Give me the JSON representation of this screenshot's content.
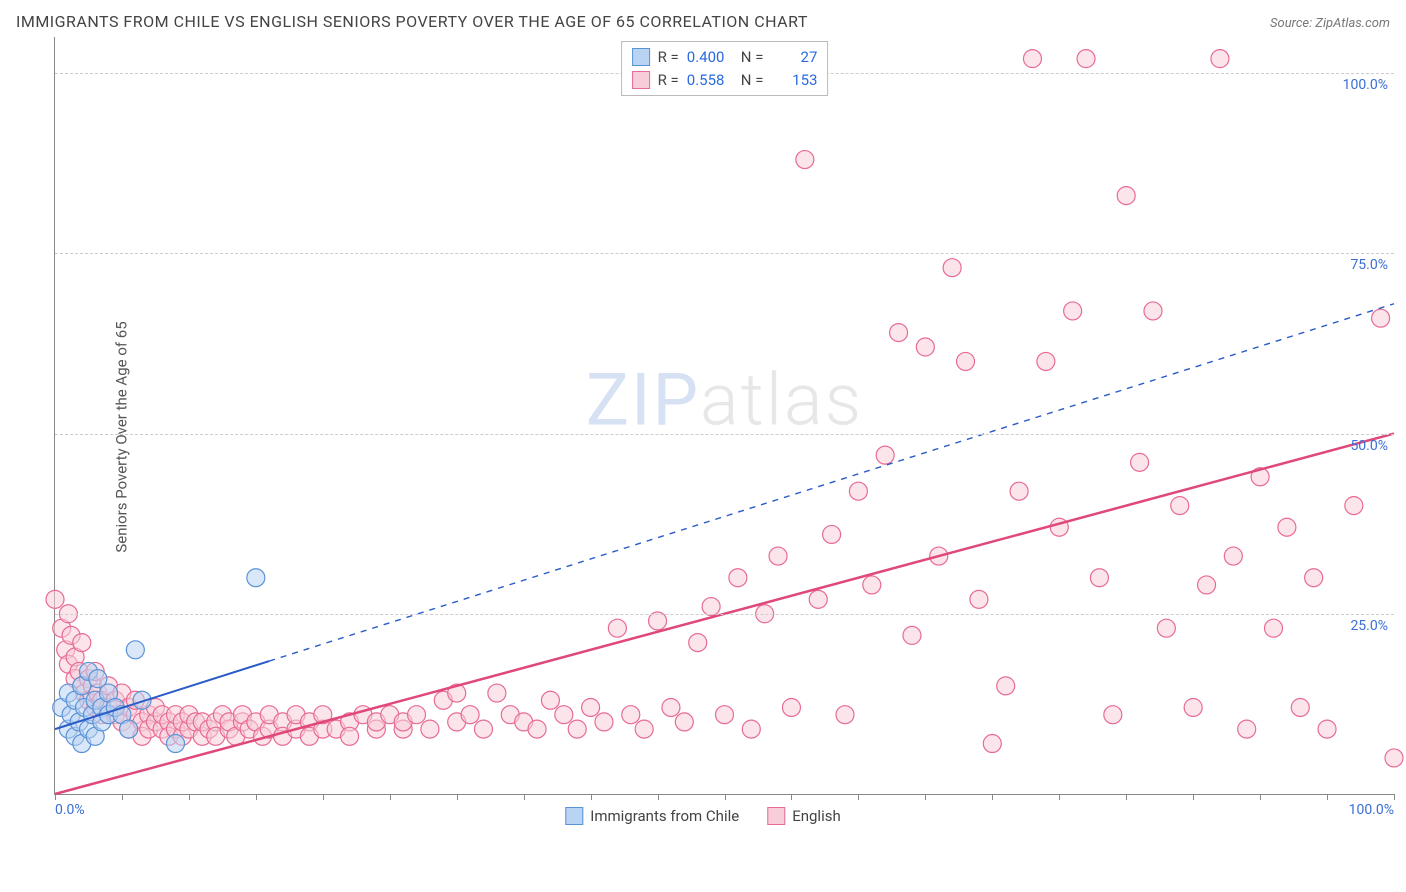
{
  "title": "IMMIGRANTS FROM CHILE VS ENGLISH SENIORS POVERTY OVER THE AGE OF 65 CORRELATION CHART",
  "source": "Source: ZipAtlas.com",
  "y_axis_label": "Seniors Poverty Over the Age of 65",
  "watermark_a": "ZIP",
  "watermark_b": "atlas",
  "chart": {
    "type": "scatter-correlation",
    "xlim": [
      0,
      100
    ],
    "ylim": [
      0,
      105
    ],
    "x_ticks_pct": [
      0,
      5,
      10,
      15,
      20,
      25,
      30,
      35,
      40,
      45,
      50,
      55,
      60,
      65,
      70,
      75,
      80,
      85,
      90,
      95,
      100
    ],
    "x_tick_labels": {
      "0": "0.0%",
      "100": "100.0%"
    },
    "y_gridlines": [
      25,
      50,
      75,
      100
    ],
    "y_tick_labels": {
      "25": "25.0%",
      "50": "50.0%",
      "75": "75.0%",
      "100": "100.0%"
    },
    "background_color": "#ffffff",
    "grid_color": "#cccccc",
    "axis_color": "#888888",
    "tick_label_color": "#3b6fd6",
    "marker_radius": 9,
    "marker_stroke_width": 1.2,
    "series": [
      {
        "key": "chile",
        "label": "Immigrants from Chile",
        "fill": "#b9d4f3",
        "stroke": "#5a93d8",
        "fill_opacity": 0.55,
        "R": "0.400",
        "N": "27",
        "trend": {
          "x1": 0,
          "y1": 9,
          "x2": 100,
          "y2": 68,
          "solid_until_x": 16,
          "color": "#2a5bc7",
          "width": 2,
          "dash": "6 6"
        },
        "points": [
          [
            0.5,
            12
          ],
          [
            1,
            9
          ],
          [
            1,
            14
          ],
          [
            1.2,
            11
          ],
          [
            1.5,
            8
          ],
          [
            1.5,
            13
          ],
          [
            1.8,
            10
          ],
          [
            2,
            7
          ],
          [
            2,
            15
          ],
          [
            2.2,
            12
          ],
          [
            2.5,
            9
          ],
          [
            2.5,
            17
          ],
          [
            2.8,
            11
          ],
          [
            3,
            13
          ],
          [
            3,
            8
          ],
          [
            3.2,
            16
          ],
          [
            3.5,
            12
          ],
          [
            3.5,
            10
          ],
          [
            4,
            11
          ],
          [
            4,
            14
          ],
          [
            4.5,
            12
          ],
          [
            5,
            11
          ],
          [
            5.5,
            9
          ],
          [
            6,
            20
          ],
          [
            6.5,
            13
          ],
          [
            9,
            7
          ],
          [
            15,
            30
          ]
        ]
      },
      {
        "key": "english",
        "label": "English",
        "fill": "#f7cdd9",
        "stroke": "#e76b95",
        "fill_opacity": 0.55,
        "R": "0.558",
        "N": "153",
        "trend": {
          "x1": 0,
          "y1": 0,
          "x2": 100,
          "y2": 50,
          "solid_until_x": 100,
          "color": "#e0487a",
          "width": 2.5,
          "dash": ""
        },
        "points": [
          [
            0,
            27
          ],
          [
            0.5,
            23
          ],
          [
            0.8,
            20
          ],
          [
            1,
            25
          ],
          [
            1,
            18
          ],
          [
            1.2,
            22
          ],
          [
            1.5,
            19
          ],
          [
            1.5,
            16
          ],
          [
            1.8,
            17
          ],
          [
            2,
            15
          ],
          [
            2,
            21
          ],
          [
            2.2,
            14
          ],
          [
            2.5,
            16
          ],
          [
            2.5,
            13
          ],
          [
            2.8,
            15
          ],
          [
            3,
            12
          ],
          [
            3,
            17
          ],
          [
            3.2,
            14
          ],
          [
            3.5,
            13
          ],
          [
            3.5,
            11
          ],
          [
            4,
            12
          ],
          [
            4,
            15
          ],
          [
            4.5,
            11
          ],
          [
            4.5,
            13
          ],
          [
            5,
            10
          ],
          [
            5,
            14
          ],
          [
            5.5,
            12
          ],
          [
            5.5,
            9
          ],
          [
            6,
            11
          ],
          [
            6,
            13
          ],
          [
            6.5,
            10
          ],
          [
            6.5,
            8
          ],
          [
            7,
            11
          ],
          [
            7,
            9
          ],
          [
            7.5,
            10
          ],
          [
            7.5,
            12
          ],
          [
            8,
            9
          ],
          [
            8,
            11
          ],
          [
            8.5,
            10
          ],
          [
            8.5,
            8
          ],
          [
            9,
            9
          ],
          [
            9,
            11
          ],
          [
            9.5,
            8
          ],
          [
            9.5,
            10
          ],
          [
            10,
            9
          ],
          [
            10,
            11
          ],
          [
            10.5,
            10
          ],
          [
            11,
            8
          ],
          [
            11,
            10
          ],
          [
            11.5,
            9
          ],
          [
            12,
            10
          ],
          [
            12,
            8
          ],
          [
            12.5,
            11
          ],
          [
            13,
            9
          ],
          [
            13,
            10
          ],
          [
            13.5,
            8
          ],
          [
            14,
            10
          ],
          [
            14,
            11
          ],
          [
            14.5,
            9
          ],
          [
            15,
            10
          ],
          [
            15.5,
            8
          ],
          [
            16,
            9
          ],
          [
            16,
            11
          ],
          [
            17,
            10
          ],
          [
            17,
            8
          ],
          [
            18,
            9
          ],
          [
            18,
            11
          ],
          [
            19,
            10
          ],
          [
            19,
            8
          ],
          [
            20,
            9
          ],
          [
            20,
            11
          ],
          [
            21,
            9
          ],
          [
            22,
            10
          ],
          [
            22,
            8
          ],
          [
            23,
            11
          ],
          [
            24,
            9
          ],
          [
            24,
            10
          ],
          [
            25,
            11
          ],
          [
            26,
            9
          ],
          [
            26,
            10
          ],
          [
            27,
            11
          ],
          [
            28,
            9
          ],
          [
            29,
            13
          ],
          [
            30,
            10
          ],
          [
            30,
            14
          ],
          [
            31,
            11
          ],
          [
            32,
            9
          ],
          [
            33,
            14
          ],
          [
            34,
            11
          ],
          [
            35,
            10
          ],
          [
            36,
            9
          ],
          [
            37,
            13
          ],
          [
            38,
            11
          ],
          [
            39,
            9
          ],
          [
            40,
            12
          ],
          [
            41,
            10
          ],
          [
            42,
            23
          ],
          [
            43,
            11
          ],
          [
            44,
            9
          ],
          [
            45,
            24
          ],
          [
            46,
            12
          ],
          [
            47,
            10
          ],
          [
            48,
            21
          ],
          [
            49,
            26
          ],
          [
            50,
            11
          ],
          [
            51,
            30
          ],
          [
            52,
            9
          ],
          [
            53,
            25
          ],
          [
            54,
            33
          ],
          [
            55,
            12
          ],
          [
            56,
            88
          ],
          [
            57,
            27
          ],
          [
            58,
            36
          ],
          [
            59,
            11
          ],
          [
            60,
            42
          ],
          [
            61,
            29
          ],
          [
            62,
            47
          ],
          [
            63,
            64
          ],
          [
            64,
            22
          ],
          [
            65,
            62
          ],
          [
            66,
            33
          ],
          [
            67,
            73
          ],
          [
            68,
            60
          ],
          [
            69,
            27
          ],
          [
            70,
            7
          ],
          [
            71,
            15
          ],
          [
            72,
            42
          ],
          [
            73,
            102
          ],
          [
            74,
            60
          ],
          [
            75,
            37
          ],
          [
            76,
            67
          ],
          [
            77,
            102
          ],
          [
            78,
            30
          ],
          [
            79,
            11
          ],
          [
            80,
            83
          ],
          [
            81,
            46
          ],
          [
            82,
            67
          ],
          [
            83,
            23
          ],
          [
            84,
            40
          ],
          [
            85,
            12
          ],
          [
            86,
            29
          ],
          [
            87,
            102
          ],
          [
            88,
            33
          ],
          [
            89,
            9
          ],
          [
            90,
            44
          ],
          [
            91,
            23
          ],
          [
            92,
            37
          ],
          [
            93,
            12
          ],
          [
            94,
            30
          ],
          [
            95,
            9
          ],
          [
            97,
            40
          ],
          [
            99,
            66
          ],
          [
            100,
            5
          ]
        ]
      }
    ]
  }
}
